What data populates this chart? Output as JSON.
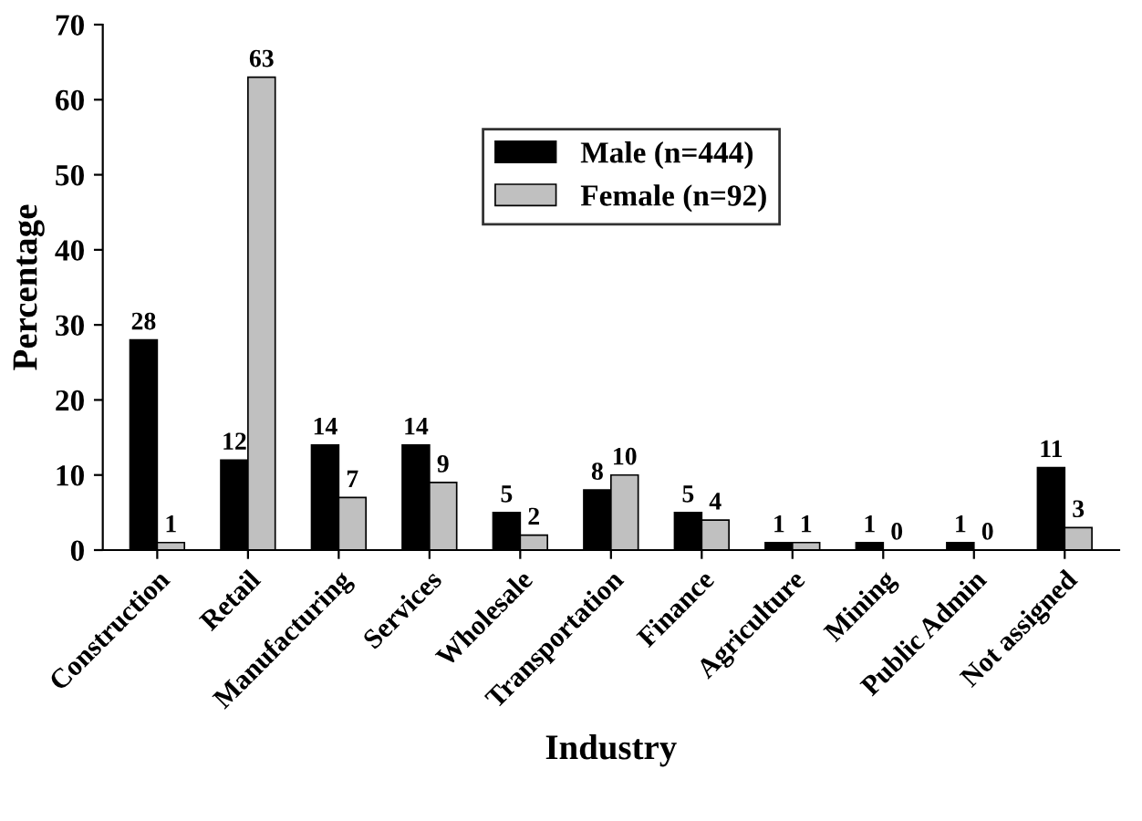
{
  "chart_data": {
    "type": "bar",
    "xlabel": "Industry",
    "ylabel": "Percentage",
    "categories": [
      "Construction",
      "Retail",
      "Manufacturing",
      "Services",
      "Wholesale",
      "Transportation",
      "Finance",
      "Agriculture",
      "Mining",
      "Public Admin",
      "Not assigned"
    ],
    "series": [
      {
        "name": "Male (n=444)",
        "color": "#000000",
        "values": [
          28,
          12,
          14,
          14,
          5,
          8,
          5,
          1,
          1,
          1,
          11
        ]
      },
      {
        "name": "Female (n=92)",
        "color": "#c0c0c0",
        "values": [
          1,
          63,
          7,
          9,
          2,
          10,
          4,
          1,
          0,
          0,
          3
        ]
      }
    ],
    "ylim": [
      0,
      70
    ],
    "yticks": [
      0,
      10,
      20,
      30,
      40,
      50,
      60,
      70
    ],
    "grid": false,
    "legend": "top",
    "data_labels": true
  }
}
